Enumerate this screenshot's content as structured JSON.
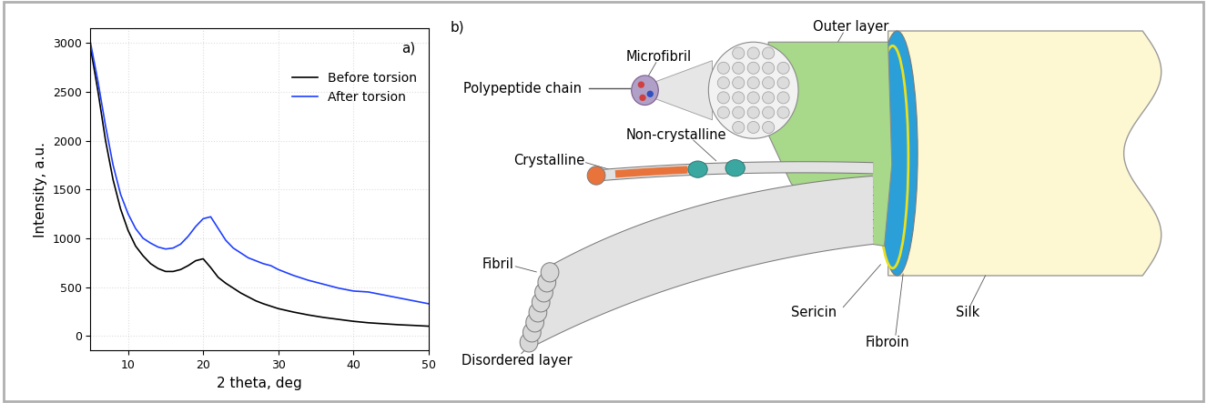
{
  "chart_data": {
    "type": "line",
    "annotations": [
      "a)"
    ],
    "x_label": "2 theta, deg",
    "y_label": "Intensity, a.u.",
    "x": [
      5,
      6,
      7,
      8,
      9,
      10,
      11,
      12,
      13,
      14,
      15,
      16,
      17,
      18,
      19,
      20,
      21,
      22,
      23,
      24,
      25,
      26,
      27,
      28,
      29,
      30,
      32,
      34,
      36,
      38,
      40,
      42,
      44,
      46,
      48,
      50
    ],
    "series": [
      {
        "name": "Before torsion",
        "color": "#000000",
        "values": [
          2950,
          2500,
          2000,
          1600,
          1300,
          1080,
          920,
          820,
          740,
          690,
          660,
          660,
          680,
          720,
          770,
          790,
          700,
          600,
          540,
          490,
          440,
          400,
          360,
          330,
          305,
          280,
          245,
          215,
          190,
          170,
          150,
          135,
          125,
          115,
          108,
          100
        ]
      },
      {
        "name": "After torsion",
        "color": "#1f3fff",
        "values": [
          3000,
          2600,
          2150,
          1750,
          1450,
          1250,
          1100,
          1000,
          950,
          910,
          890,
          900,
          940,
          1020,
          1120,
          1200,
          1220,
          1100,
          980,
          900,
          850,
          800,
          770,
          740,
          720,
          680,
          620,
          570,
          530,
          490,
          460,
          450,
          420,
          390,
          360,
          330
        ]
      }
    ],
    "xlim": [
      5,
      50
    ],
    "xticks": [
      10,
      20,
      30,
      40,
      50
    ],
    "ylim": [
      -150,
      3150
    ],
    "yticks": [
      0,
      500,
      1000,
      1500,
      2000,
      2500,
      3000
    ],
    "grid": true,
    "legend": "upper right"
  },
  "diagram": {
    "panel_label": "b)",
    "labels": {
      "polypeptide_chain": "Polypeptide chain",
      "microfibril": "Microfibril",
      "outer_layer": "Outer layer",
      "non_crystalline": "Non-crystalline",
      "crystalline": "Crystalline",
      "fibril": "Fibril",
      "disordered_layer": "Disordered layer",
      "sericin": "Sericin",
      "fibroin": "Fibroin",
      "silk": "Silk"
    }
  }
}
